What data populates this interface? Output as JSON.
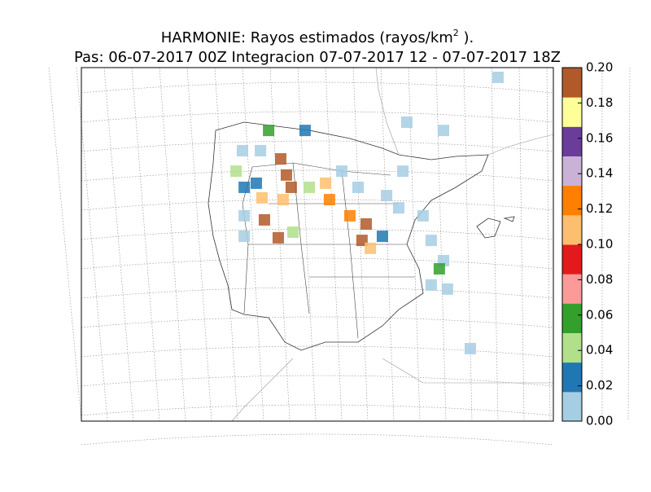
{
  "title": {
    "text": "HARMONIE: Rayos estimados  (rayos/km",
    "superscript": "2",
    "suffix": " )."
  },
  "subtitle": "Pas: 06-07-2017 00Z Integracion 07-07-2017 12 - 07-07-2017 18Z",
  "colorbar": {
    "lim": [
      0,
      0.2
    ],
    "ticks": [
      {
        "value": 0,
        "label": "0.00"
      },
      {
        "value": 0.02,
        "label": "0.02"
      },
      {
        "value": 0.04,
        "label": "0.04"
      },
      {
        "value": 0.06,
        "label": "0.06"
      },
      {
        "value": 0.08,
        "label": "0.08"
      },
      {
        "value": 0.1,
        "label": "0.10"
      },
      {
        "value": 0.12,
        "label": "0.12"
      },
      {
        "value": 0.14,
        "label": "0.14"
      },
      {
        "value": 0.16,
        "label": "0.16"
      },
      {
        "value": 0.18,
        "label": "0.18"
      },
      {
        "value": 0.2,
        "label": "0.20"
      }
    ],
    "colors": [
      "#a6cee3",
      "#1f78b4",
      "#b2df8a",
      "#33a02c",
      "#fb9a99",
      "#e31a1c",
      "#fdbf6f",
      "#ff7f00",
      "#cab2d6",
      "#6a3d9a",
      "#ffff99",
      "#b15928"
    ]
  },
  "cells": [
    {
      "lon": -6.48,
      "lat": 42.76,
      "value": 0.2
    },
    {
      "lon": -6.22,
      "lat": 42.21,
      "value": 0.2
    },
    {
      "lon": -6.0,
      "lat": 41.79,
      "value": 0.19
    },
    {
      "lon": -7.33,
      "lat": 41.43,
      "value": 0.11
    },
    {
      "lon": -6.37,
      "lat": 41.37,
      "value": 0.11
    },
    {
      "lon": -4.26,
      "lat": 41.37,
      "value": 0.12
    },
    {
      "lon": -3.33,
      "lat": 40.82,
      "value": 0.12
    },
    {
      "lon": -2.59,
      "lat": 40.54,
      "value": 0.2
    },
    {
      "lon": -2.78,
      "lat": 39.98,
      "value": 0.2
    },
    {
      "lon": -2.4,
      "lat": 39.71,
      "value": 0.11
    },
    {
      "lon": -7.22,
      "lat": 40.68,
      "value": 0.2
    },
    {
      "lon": -6.59,
      "lat": 40.07,
      "value": 0.2
    },
    {
      "lon": -8.14,
      "lat": 40.12,
      "value": 0.01
    },
    {
      "lon": -8.14,
      "lat": 40.82,
      "value": 0.005
    },
    {
      "lon": -7.03,
      "lat": 43.73,
      "value": 0.05
    },
    {
      "lon": -5.37,
      "lat": 43.73,
      "value": 0.03
    },
    {
      "lon": -8.22,
      "lat": 43.04,
      "value": 0.01
    },
    {
      "lon": -7.4,
      "lat": 43.04,
      "value": 0.005
    },
    {
      "lon": -5.18,
      "lat": 41.79,
      "value": 0.04
    },
    {
      "lon": -4.44,
      "lat": 41.93,
      "value": 0.1
    },
    {
      "lon": -2.96,
      "lat": 41.79,
      "value": 0.005
    },
    {
      "lon": -1.66,
      "lat": 41.51,
      "value": 0.005
    },
    {
      "lon": -1.11,
      "lat": 41.09,
      "value": 0.005
    },
    {
      "lon": 0.0,
      "lat": 40.82,
      "value": 0.005
    },
    {
      "lon": 0.37,
      "lat": 39.98,
      "value": 0.005
    },
    {
      "lon": 0.93,
      "lat": 39.29,
      "value": 0.005
    },
    {
      "lon": 0.74,
      "lat": 39.01,
      "value": 0.06
    },
    {
      "lon": 1.11,
      "lat": 38.32,
      "value": 0.005
    },
    {
      "lon": 0.37,
      "lat": 38.46,
      "value": 0.01
    },
    {
      "lon": -0.74,
      "lat": 44.01,
      "value": 0.005
    },
    {
      "lon": 0.93,
      "lat": 43.73,
      "value": 0.005
    },
    {
      "lon": 3.41,
      "lat": 45.54,
      "value": 0.005
    },
    {
      "lon": 2.15,
      "lat": 36.29,
      "value": 0.005
    },
    {
      "lon": -0.92,
      "lat": 42.34,
      "value": 0.005
    },
    {
      "lon": -3.7,
      "lat": 42.34,
      "value": 0.005
    },
    {
      "lon": -1.85,
      "lat": 40.12,
      "value": 0.03
    },
    {
      "lon": -8.51,
      "lat": 42.34,
      "value": 0.04
    },
    {
      "lon": -8.14,
      "lat": 41.79,
      "value": 0.02
    },
    {
      "lon": -7.59,
      "lat": 41.93,
      "value": 0.03
    },
    {
      "lon": -5.92,
      "lat": 40.26,
      "value": 0.04
    }
  ]
}
